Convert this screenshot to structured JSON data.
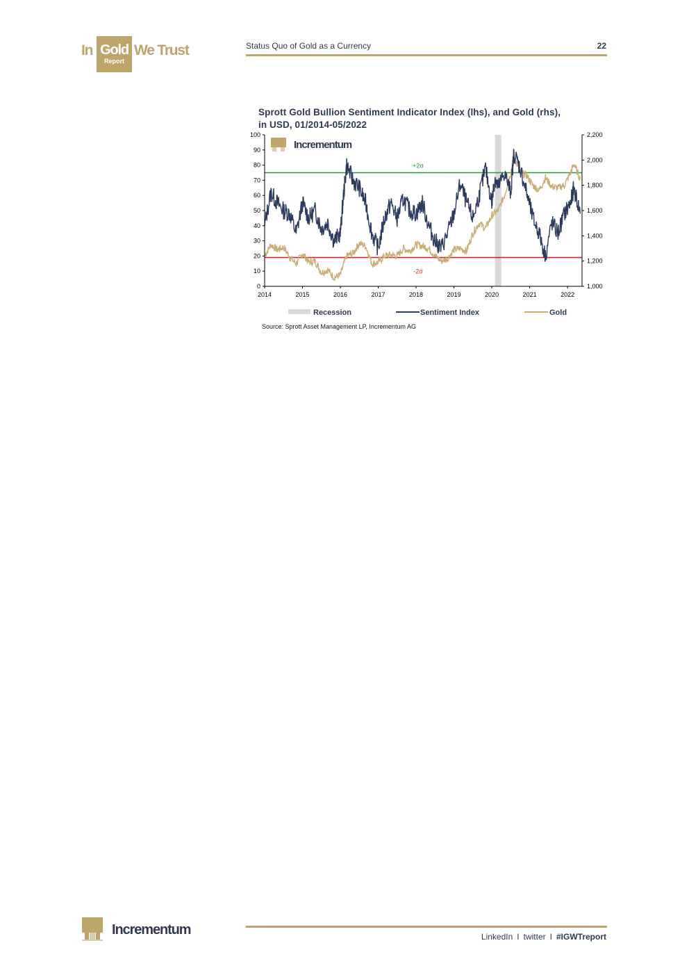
{
  "header": {
    "logo_in": "In",
    "logo_gold": "Gold",
    "logo_we_trust": "We Trust",
    "logo_report": "Report",
    "section_title": "Status Quo of Gold as a Currency",
    "page_number": "22"
  },
  "chart_data": {
    "type": "line",
    "title": "Sprott Gold Bullion Sentiment Indicator Index (lhs), and Gold (rhs), in USD, 01/2014-05/2022",
    "watermark": "Incrementum",
    "x_range": [
      "2014-01",
      "2022-05"
    ],
    "x_ticks": [
      "2014",
      "2015",
      "2016",
      "2017",
      "2018",
      "2019",
      "2020",
      "2021",
      "2022"
    ],
    "y_left": {
      "min": 0,
      "max": 100,
      "ticks": [
        "0",
        "10",
        "20",
        "30",
        "40",
        "50",
        "60",
        "70",
        "80",
        "90",
        "100"
      ]
    },
    "y_right": {
      "min": 1000,
      "max": 2200,
      "ticks": [
        "1,000",
        "1,200",
        "1,400",
        "1,600",
        "1,800",
        "2,000",
        "2,200"
      ]
    },
    "reference_lines": [
      {
        "label": "+2σ",
        "axis": "left",
        "value": 75,
        "color": "#1f9a3e"
      },
      {
        "label": "-2σ",
        "axis": "left",
        "value": 19,
        "color": "#d81f26"
      }
    ],
    "recession": {
      "label": "Recession",
      "start": "2020-02",
      "end": "2020-04",
      "color": "#d9d9d9"
    },
    "series": [
      {
        "name": "Sentiment Index",
        "axis": "left",
        "color": "#2b3a5e",
        "x": [
          "2014-01",
          "2014-03",
          "2014-05",
          "2014-07",
          "2014-09",
          "2014-11",
          "2015-01",
          "2015-03",
          "2015-05",
          "2015-07",
          "2015-09",
          "2015-11",
          "2016-01",
          "2016-02",
          "2016-03",
          "2016-05",
          "2016-07",
          "2016-09",
          "2016-11",
          "2017-01",
          "2017-03",
          "2017-05",
          "2017-07",
          "2017-09",
          "2017-11",
          "2018-01",
          "2018-03",
          "2018-05",
          "2018-07",
          "2018-09",
          "2018-11",
          "2019-01",
          "2019-03",
          "2019-05",
          "2019-07",
          "2019-09",
          "2019-11",
          "2020-01",
          "2020-02",
          "2020-03",
          "2020-05",
          "2020-07",
          "2020-08",
          "2020-10",
          "2020-12",
          "2021-02",
          "2021-04",
          "2021-06",
          "2021-08",
          "2021-10",
          "2021-12",
          "2022-02",
          "2022-03",
          "2022-05"
        ],
        "values": [
          40,
          62,
          55,
          50,
          48,
          35,
          55,
          45,
          50,
          38,
          42,
          30,
          35,
          60,
          80,
          70,
          65,
          55,
          35,
          25,
          45,
          55,
          45,
          58,
          50,
          48,
          55,
          40,
          30,
          25,
          35,
          48,
          68,
          55,
          45,
          60,
          78,
          55,
          72,
          65,
          75,
          62,
          88,
          78,
          62,
          45,
          35,
          20,
          42,
          35,
          48,
          55,
          65,
          48
        ]
      },
      {
        "name": "Gold",
        "axis": "right",
        "color": "#c9ad74",
        "x": [
          "2014-01",
          "2014-03",
          "2014-05",
          "2014-07",
          "2014-09",
          "2014-11",
          "2015-01",
          "2015-03",
          "2015-05",
          "2015-07",
          "2015-09",
          "2015-11",
          "2016-01",
          "2016-03",
          "2016-05",
          "2016-07",
          "2016-09",
          "2016-11",
          "2017-01",
          "2017-03",
          "2017-05",
          "2017-07",
          "2017-09",
          "2017-11",
          "2018-01",
          "2018-03",
          "2018-05",
          "2018-07",
          "2018-09",
          "2018-11",
          "2019-01",
          "2019-03",
          "2019-05",
          "2019-07",
          "2019-09",
          "2019-11",
          "2020-01",
          "2020-03",
          "2020-05",
          "2020-07",
          "2020-08",
          "2020-10",
          "2020-12",
          "2021-02",
          "2021-04",
          "2021-06",
          "2021-08",
          "2021-10",
          "2021-12",
          "2022-02",
          "2022-03",
          "2022-05"
        ],
        "values": [
          1240,
          1330,
          1290,
          1310,
          1230,
          1180,
          1260,
          1190,
          1200,
          1110,
          1130,
          1070,
          1090,
          1240,
          1260,
          1340,
          1320,
          1180,
          1190,
          1240,
          1250,
          1240,
          1300,
          1280,
          1330,
          1320,
          1300,
          1240,
          1200,
          1220,
          1290,
          1300,
          1280,
          1420,
          1500,
          1460,
          1560,
          1600,
          1720,
          1900,
          2030,
          1900,
          1880,
          1800,
          1760,
          1860,
          1790,
          1780,
          1800,
          1900,
          1970,
          1850
        ]
      }
    ],
    "legend": {
      "placement": "bottom",
      "entries": [
        "Recession",
        "Sentiment Index",
        "Gold"
      ]
    }
  },
  "source": "Source: Sprott Asset Management LP, Incrementum AG",
  "footer": {
    "logo_text": "Incrementum",
    "links": [
      "LinkedIn",
      "twitter"
    ],
    "separator": "I",
    "hashtag": "#IGWTreport"
  },
  "colors": {
    "gold_brand": "#bda56c",
    "navy_brand": "#2f3a52"
  },
  "icons": {
    "top_logo": "in-gold-we-trust-logo",
    "bottom_logo": "incrementum-logo"
  }
}
